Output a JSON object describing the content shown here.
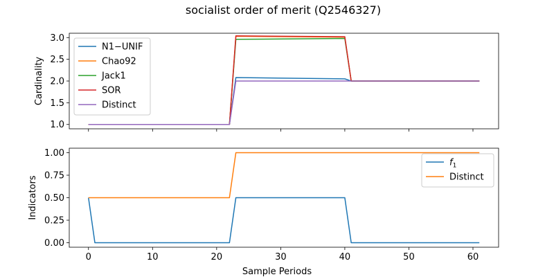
{
  "figure": {
    "title": "socialist order of merit (Q2546327)"
  },
  "chart_data": [
    {
      "type": "line",
      "ylabel": "Cardinality",
      "xlabel": "",
      "xlim": [
        -3,
        64
      ],
      "ylim": [
        0.9,
        3.1
      ],
      "xticks": [
        0,
        10,
        20,
        30,
        40,
        50,
        60
      ],
      "yticks": [
        1.0,
        1.5,
        2.0,
        2.5,
        3.0
      ],
      "ytick_labels": [
        "1.0",
        "1.5",
        "2.0",
        "2.5",
        "3.0"
      ],
      "show_xtick_labels": false,
      "legend": "upper-left",
      "series": [
        {
          "name": "N1−UNIF",
          "color": "#1f77b4",
          "points": [
            [
              0,
              1.0
            ],
            [
              22,
              1.0
            ],
            [
              23,
              2.08
            ],
            [
              40,
              2.05
            ],
            [
              41,
              2.0
            ],
            [
              61,
              2.0
            ]
          ]
        },
        {
          "name": "Chao92",
          "color": "#ff7f0e",
          "points": [
            [
              0,
              1.0
            ],
            [
              22,
              1.0
            ],
            [
              23,
              3.03
            ],
            [
              40,
              3.01
            ],
            [
              41,
              2.0
            ],
            [
              61,
              2.0
            ]
          ]
        },
        {
          "name": "Jack1",
          "color": "#2ca02c",
          "points": [
            [
              0,
              1.0
            ],
            [
              22,
              1.0
            ],
            [
              23,
              2.96
            ],
            [
              40,
              2.98
            ],
            [
              41,
              2.0
            ],
            [
              61,
              2.0
            ]
          ]
        },
        {
          "name": "SOR",
          "color": "#d62728",
          "points": [
            [
              0,
              1.0
            ],
            [
              22,
              1.0
            ],
            [
              23,
              3.04
            ],
            [
              40,
              3.02
            ],
            [
              41,
              2.0
            ],
            [
              61,
              2.0
            ]
          ]
        },
        {
          "name": "Distinct",
          "color": "#9467bd",
          "points": [
            [
              0,
              1.0
            ],
            [
              22,
              1.0
            ],
            [
              23,
              2.0
            ],
            [
              40,
              2.0
            ],
            [
              41,
              2.0
            ],
            [
              61,
              2.0
            ]
          ]
        }
      ]
    },
    {
      "type": "line",
      "ylabel": "Indicators",
      "xlabel": "Sample Periods",
      "xlim": [
        -3,
        64
      ],
      "ylim": [
        -0.05,
        1.05
      ],
      "xticks": [
        0,
        10,
        20,
        30,
        40,
        50,
        60
      ],
      "yticks": [
        0.0,
        0.25,
        0.5,
        0.75,
        1.0
      ],
      "ytick_labels": [
        "0.00",
        "0.25",
        "0.50",
        "0.75",
        "1.00"
      ],
      "show_xtick_labels": true,
      "legend": "upper-right",
      "series": [
        {
          "name": "f",
          "name_subscript": "1",
          "color": "#1f77b4",
          "points": [
            [
              0,
              0.5
            ],
            [
              1,
              0.0
            ],
            [
              22,
              0.0
            ],
            [
              23,
              0.5
            ],
            [
              40,
              0.5
            ],
            [
              41,
              0.0
            ],
            [
              61,
              0.0
            ]
          ]
        },
        {
          "name": "Distinct",
          "color": "#ff7f0e",
          "points": [
            [
              0,
              0.5
            ],
            [
              22,
              0.5
            ],
            [
              23,
              1.0
            ],
            [
              61,
              1.0
            ]
          ]
        }
      ]
    }
  ]
}
